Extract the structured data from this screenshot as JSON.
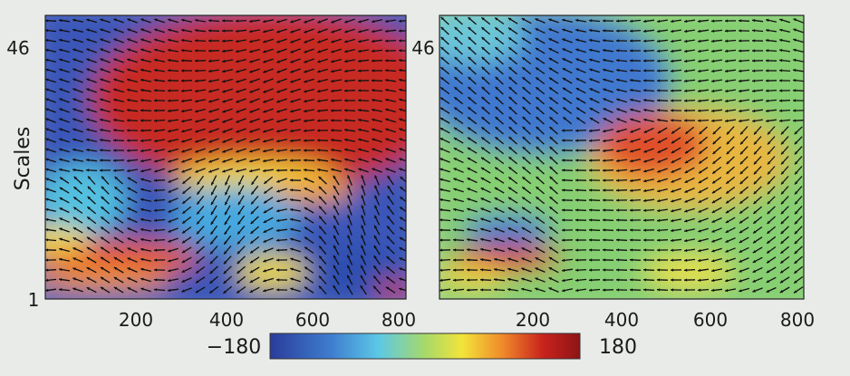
{
  "chart_data": [
    {
      "type": "heatmap",
      "ylabel": "Scales",
      "x_ticks": [
        200,
        400,
        600,
        800
      ],
      "y_ticks": [
        1,
        46
      ],
      "xlim": [
        0,
        800
      ],
      "ylim": [
        1,
        46
      ],
      "color_range": [
        -180,
        180
      ],
      "overlay": "phase-direction arrows (black) over color-coded phase field",
      "dominant_regions": [
        {
          "region": "upper center",
          "phase": 180
        },
        {
          "region": "left and lower center",
          "phase": -180
        },
        {
          "region": "bottom edge",
          "phase": "mixed"
        }
      ]
    },
    {
      "type": "heatmap",
      "x_ticks": [
        200,
        400,
        600,
        800
      ],
      "y_ticks": [
        46
      ],
      "xlim": [
        0,
        800
      ],
      "ylim": [
        1,
        46
      ],
      "color_range": [
        -180,
        180
      ],
      "overlay": "phase-direction arrows (black) over color-coded phase field",
      "dominant_regions": [
        {
          "region": "upper left",
          "phase": -120
        },
        {
          "region": "center-right",
          "phase": 120
        },
        {
          "region": "lower right",
          "phase": 30
        }
      ]
    }
  ],
  "labels": {
    "ylabel": "Scales",
    "left_y_top": "46",
    "left_y_bottom": "1",
    "right_y_top": "46",
    "x_ticks": [
      "200",
      "400",
      "600",
      "800"
    ],
    "colorbar_min": "−180",
    "colorbar_max": "180"
  },
  "colorbar": {
    "min": -180,
    "max": 180,
    "stops": [
      "#2a3c9a",
      "#3f7fd0",
      "#5cc8e6",
      "#a7d96a",
      "#f2e43a",
      "#f08a2a",
      "#c9231d",
      "#8e1416"
    ]
  }
}
